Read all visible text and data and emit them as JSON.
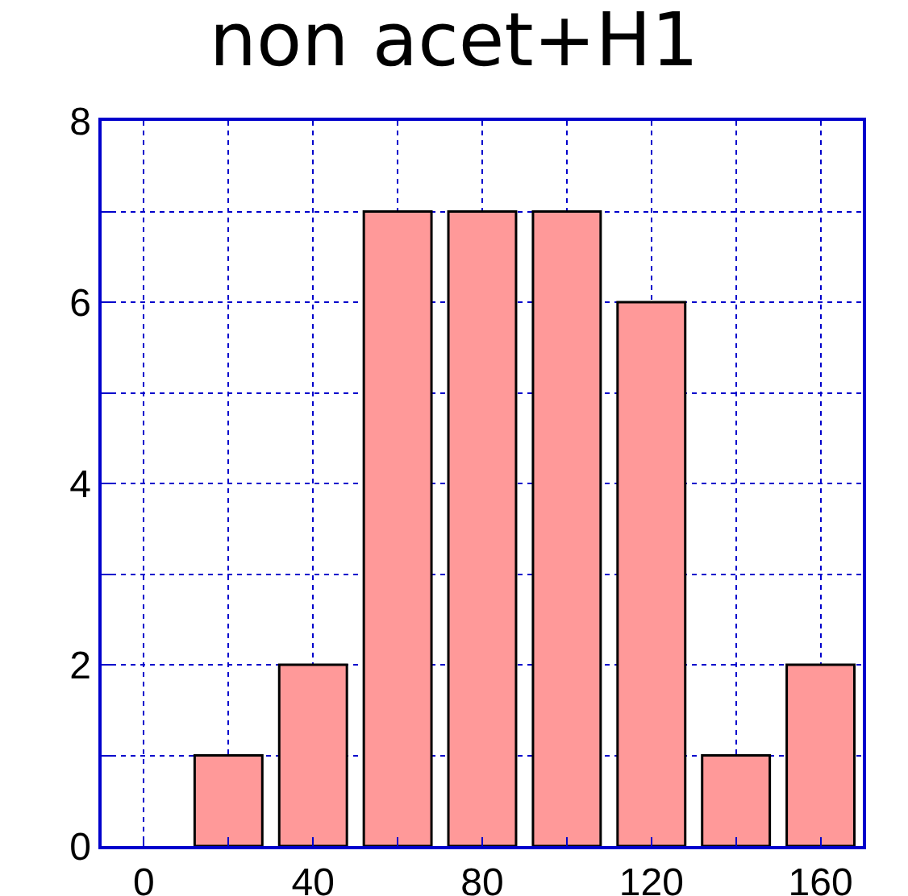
{
  "chart_data": {
    "type": "bar",
    "title": "non acet+H1",
    "x": [
      20,
      40,
      60,
      80,
      100,
      120,
      140,
      160
    ],
    "values": [
      1,
      2,
      7,
      7,
      7,
      6,
      1,
      2
    ],
    "color": "#ff9999",
    "xlim": [
      -10,
      170
    ],
    "xticks": [
      0,
      {
        "value": 20,
        "label": null
      },
      40,
      {
        "value": 60,
        "label": null
      },
      80,
      {
        "value": 100,
        "label": null
      },
      120,
      {
        "value": 140,
        "label": null
      },
      160
    ],
    "ylim": [
      0,
      8
    ],
    "yticks": [
      0,
      {
        "value": 1,
        "label": null
      },
      2,
      {
        "value": 3,
        "label": null
      },
      4,
      {
        "value": 5,
        "label": null
      },
      6,
      {
        "value": 7,
        "label": null
      },
      8
    ],
    "grid": true
  }
}
